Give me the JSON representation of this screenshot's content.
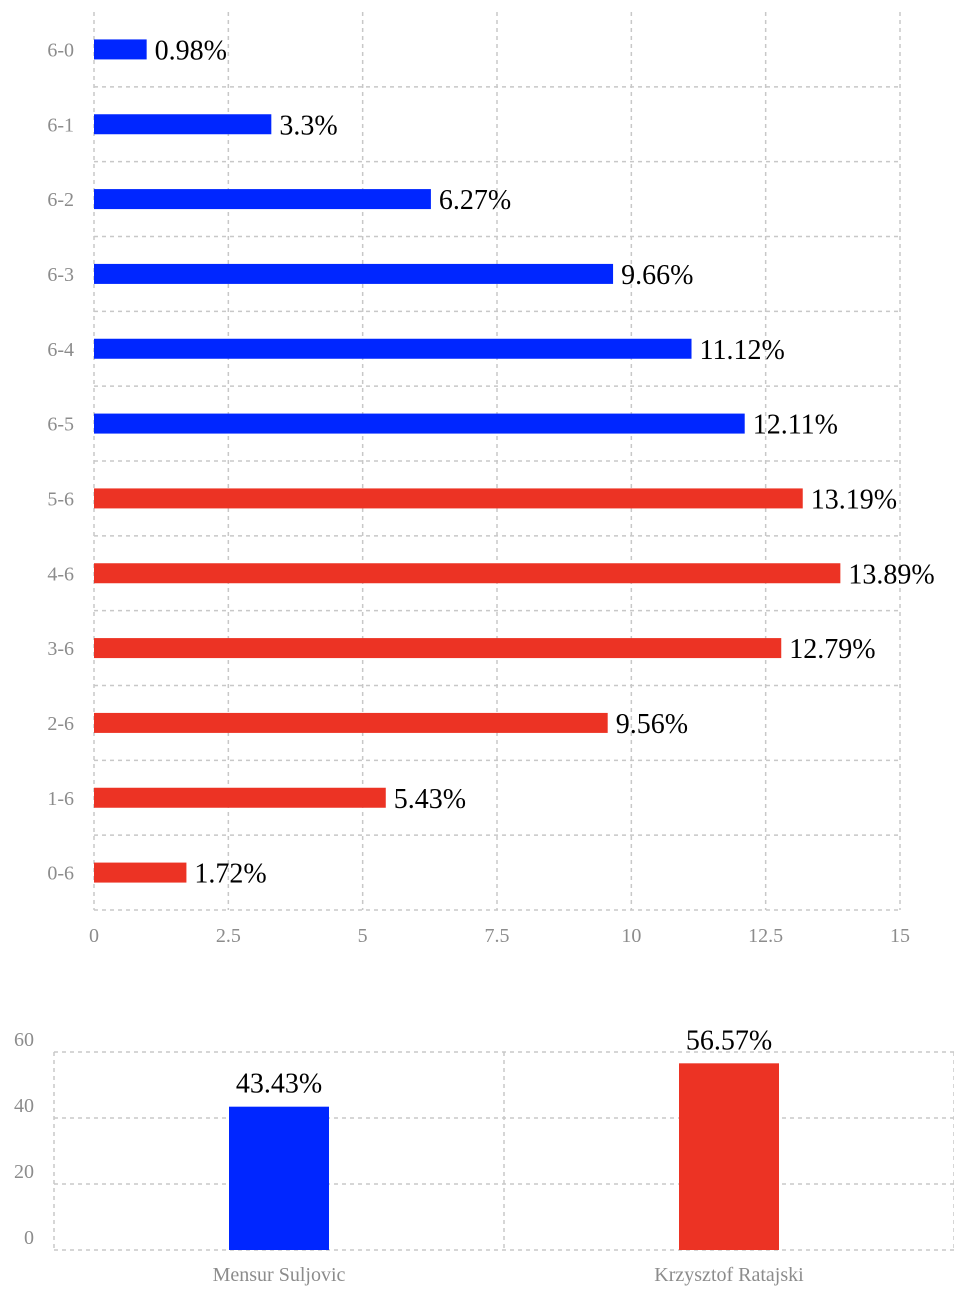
{
  "chart_data": [
    {
      "type": "bar",
      "orientation": "horizontal",
      "categories": [
        "6-0",
        "6-1",
        "6-2",
        "6-3",
        "6-4",
        "6-5",
        "5-6",
        "4-6",
        "3-6",
        "2-6",
        "1-6",
        "0-6"
      ],
      "values": [
        0.98,
        3.3,
        6.27,
        9.66,
        11.12,
        12.11,
        13.19,
        13.89,
        12.79,
        9.56,
        5.43,
        1.72
      ],
      "value_labels": [
        "0.98%",
        "3.3%",
        "6.27%",
        "9.66%",
        "11.12%",
        "12.11%",
        "13.19%",
        "13.89%",
        "12.79%",
        "9.56%",
        "5.43%",
        "1.72%"
      ],
      "bar_colors": [
        "#0026ff",
        "#0026ff",
        "#0026ff",
        "#0026ff",
        "#0026ff",
        "#0026ff",
        "#ec3324",
        "#ec3324",
        "#ec3324",
        "#ec3324",
        "#ec3324",
        "#ec3324"
      ],
      "x_ticks": [
        "0",
        "2.5",
        "5",
        "7.5",
        "10",
        "12.5",
        "15"
      ],
      "xlim": [
        0,
        15
      ],
      "grid": true
    },
    {
      "type": "bar",
      "orientation": "vertical",
      "categories": [
        "Mensur Suljovic",
        "Krzysztof Ratajski"
      ],
      "values": [
        43.43,
        56.57
      ],
      "value_labels": [
        "43.43%",
        "56.57%"
      ],
      "bar_colors": [
        "#0026ff",
        "#ec3324"
      ],
      "y_ticks": [
        "0",
        "20",
        "40",
        "60"
      ],
      "ylim": [
        0,
        60
      ],
      "grid": true
    }
  ]
}
